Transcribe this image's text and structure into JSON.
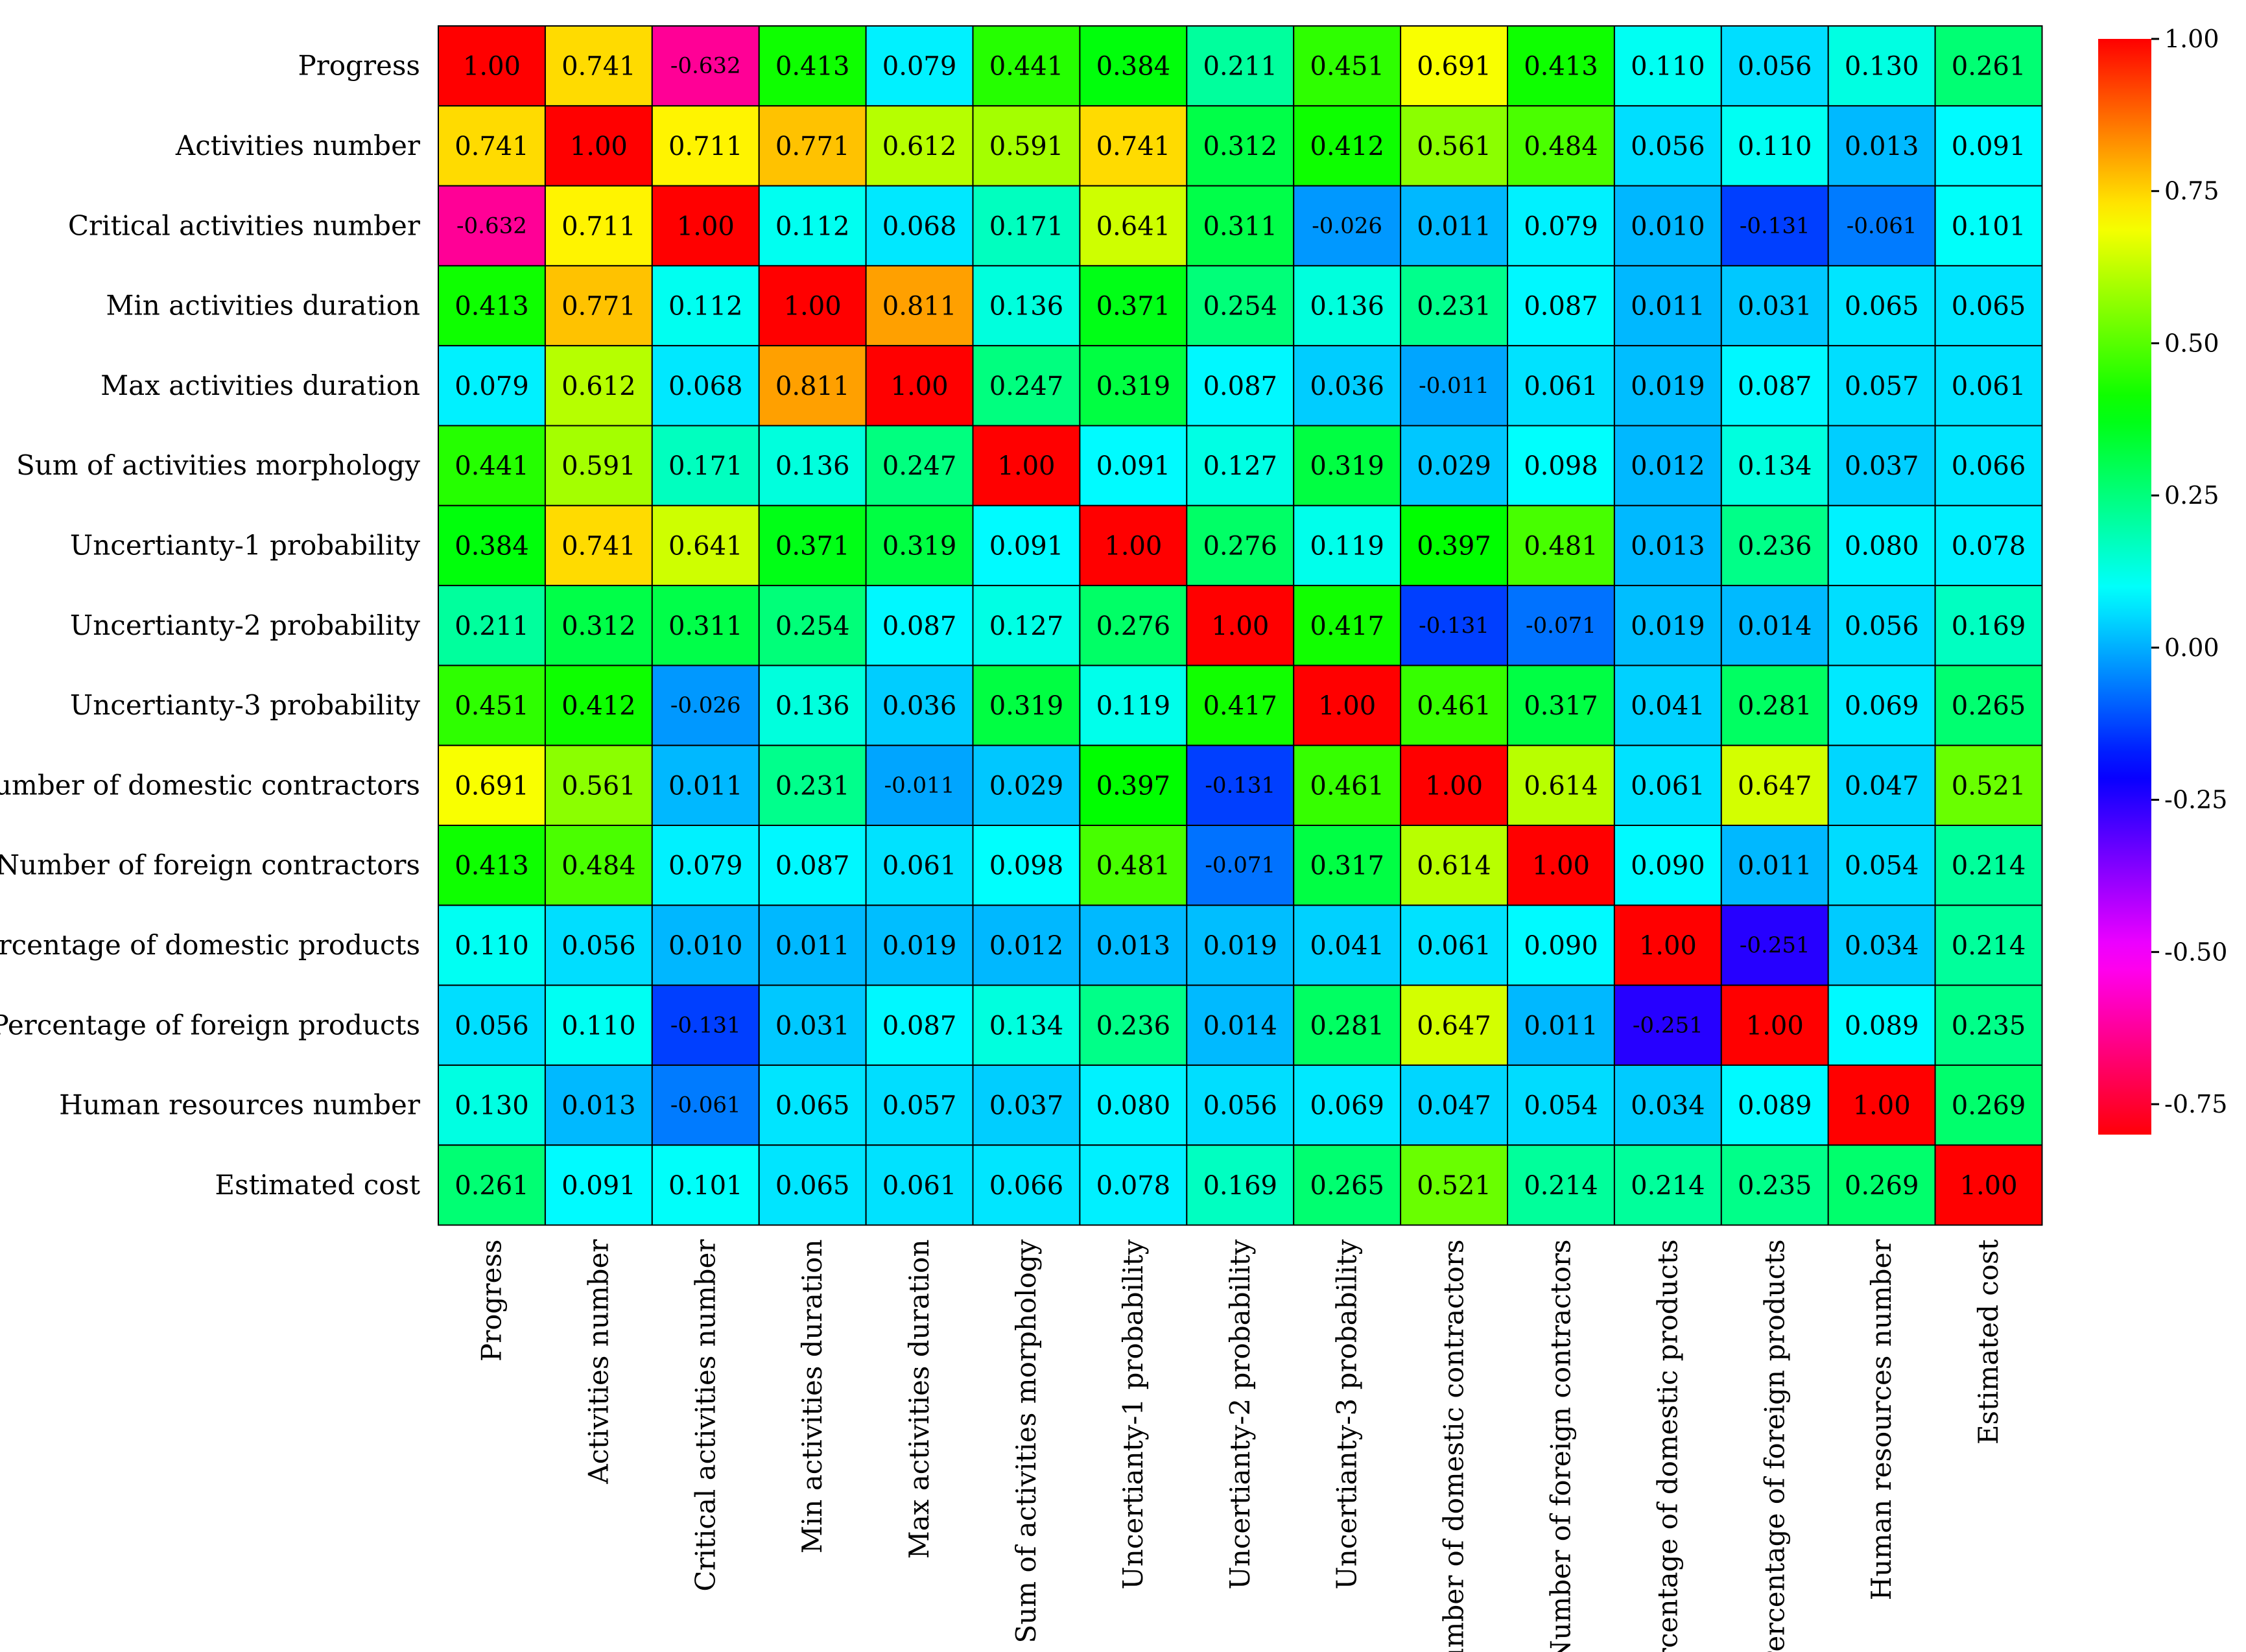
{
  "chart_data": {
    "type": "heatmap",
    "title": "",
    "xlabel": "",
    "ylabel": "",
    "rows": [
      "Progress",
      "Activities number",
      "Critical activities number",
      "Min activities duration",
      "Max activities duration",
      "Sum of activities morphology",
      "Uncertianty-1 probability",
      "Uncertianty-2 probability",
      "Uncertianty-3 probability",
      "Number of domestic contractors",
      "Number of foreign contractors",
      "Percentage of domestic products",
      "Percentage of foreign products",
      "Human resources number",
      "Estimated cost"
    ],
    "columns": [
      "Progress",
      "Activities number",
      "Critical activities number",
      "Min activities duration",
      "Max activities duration",
      "Sum of activities morphology",
      "Uncertianty-1 probability",
      "Uncertianty-2 probability",
      "Uncertianty-3 probability",
      "Number of domestic contractors",
      "Number of foreign contractors",
      "Percentage of domestic products",
      "Percentage of foreign products",
      "Human resources number",
      "Estimated cost"
    ],
    "labels": [
      [
        "1.00",
        "0.741",
        "-0.632",
        "0.413",
        "0.079",
        "0.441",
        "0.384",
        "0.211",
        "0.451",
        "0.691",
        "0.413",
        "0.110",
        "0.056",
        "0.130",
        "0.261"
      ],
      [
        "0.741",
        "1.00",
        "0.711",
        "0.771",
        "0.612",
        "0.591",
        "0.741",
        "0.312",
        "0.412",
        "0.561",
        "0.484",
        "0.056",
        "0.110",
        "0.013",
        "0.091"
      ],
      [
        "-0.632",
        "0.711",
        "1.00",
        "0.112",
        "0.068",
        "0.171",
        "0.641",
        "0.311",
        "-0.026",
        "0.011",
        "0.079",
        "0.010",
        "-0.131",
        "-0.061",
        "0.101"
      ],
      [
        "0.413",
        "0.771",
        "0.112",
        "1.00",
        "0.811",
        "0.136",
        "0.371",
        "0.254",
        "0.136",
        "0.231",
        "0.087",
        "0.011",
        "0.031",
        "0.065",
        "0.065"
      ],
      [
        "0.079",
        "0.612",
        "0.068",
        "0.811",
        "1.00",
        "0.247",
        "0.319",
        "0.087",
        "0.036",
        "-0.011",
        "0.061",
        "0.019",
        "0.087",
        "0.057",
        "0.061"
      ],
      [
        "0.441",
        "0.591",
        "0.171",
        "0.136",
        "0.247",
        "1.00",
        "0.091",
        "0.127",
        "0.319",
        "0.029",
        "0.098",
        "0.012",
        "0.134",
        "0.037",
        "0.066"
      ],
      [
        "0.384",
        "0.741",
        "0.641",
        "0.371",
        "0.319",
        "0.091",
        "1.00",
        "0.276",
        "0.119",
        "0.397",
        "0.481",
        "0.013",
        "0.236",
        "0.080",
        "0.078"
      ],
      [
        "0.211",
        "0.312",
        "0.311",
        "0.254",
        "0.087",
        "0.127",
        "0.276",
        "1.00",
        "0.417",
        "-0.131",
        "-0.071",
        "0.019",
        "0.014",
        "0.056",
        "0.169"
      ],
      [
        "0.451",
        "0.412",
        "-0.026",
        "0.136",
        "0.036",
        "0.319",
        "0.119",
        "0.417",
        "1.00",
        "0.461",
        "0.317",
        "0.041",
        "0.281",
        "0.069",
        "0.265"
      ],
      [
        "0.691",
        "0.561",
        "0.011",
        "0.231",
        "-0.011",
        "0.029",
        "0.397",
        "-0.131",
        "0.461",
        "1.00",
        "0.614",
        "0.061",
        "0.647",
        "0.047",
        "0.521"
      ],
      [
        "0.413",
        "0.484",
        "0.079",
        "0.087",
        "0.061",
        "0.098",
        "0.481",
        "-0.071",
        "0.317",
        "0.614",
        "1.00",
        "0.090",
        "0.011",
        "0.054",
        "0.214"
      ],
      [
        "0.110",
        "0.056",
        "0.010",
        "0.011",
        "0.019",
        "0.012",
        "0.013",
        "0.019",
        "0.041",
        "0.061",
        "0.090",
        "1.00",
        "-0.251",
        "0.034",
        "0.214"
      ],
      [
        "0.056",
        "0.110",
        "-0.131",
        "0.031",
        "0.087",
        "0.134",
        "0.236",
        "0.014",
        "0.281",
        "0.647",
        "0.011",
        "-0.251",
        "1.00",
        "0.089",
        "0.235"
      ],
      [
        "0.130",
        "0.013",
        "-0.061",
        "0.065",
        "0.057",
        "0.037",
        "0.080",
        "0.056",
        "0.069",
        "0.047",
        "0.054",
        "0.034",
        "0.089",
        "1.00",
        "0.269"
      ],
      [
        "0.261",
        "0.091",
        "0.101",
        "0.065",
        "0.061",
        "0.066",
        "0.078",
        "0.169",
        "0.265",
        "0.521",
        "0.214",
        "0.214",
        "0.235",
        "0.269",
        "1.00"
      ]
    ],
    "colorbar": {
      "range": [
        -0.8,
        1.0
      ],
      "ticks": [
        1.0,
        0.75,
        0.5,
        0.25,
        0.0,
        -0.25,
        -0.5,
        -0.75
      ],
      "tick_labels": [
        "1.00",
        "0.75",
        "0.50",
        "0.25",
        "0.00",
        "-0.25",
        "-0.50",
        "-0.75"
      ],
      "colormap": "gist_rainbow (reversed: red at top)"
    },
    "grid": true,
    "legend": "colorbar right"
  }
}
